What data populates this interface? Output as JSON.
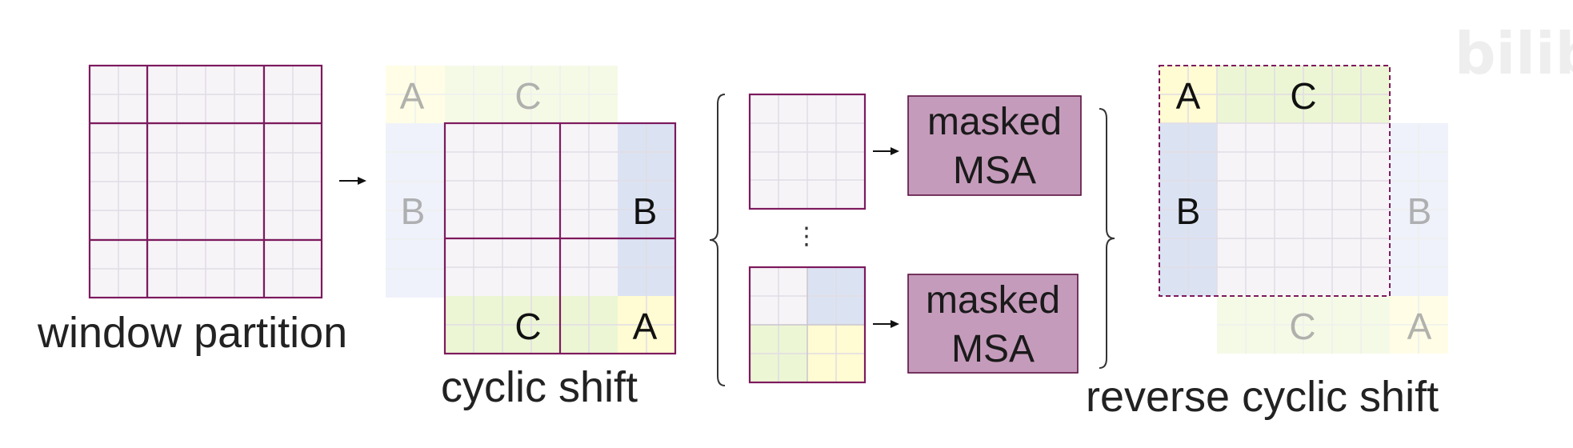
{
  "captions": {
    "window_partition": "window partition",
    "cyclic_shift": "cyclic shift",
    "reverse_cyclic_shift": "reverse cyclic shift"
  },
  "msa": {
    "line1": "masked",
    "line2": "MSA"
  },
  "region_labels": {
    "a": "A",
    "b": "B",
    "c": "C"
  },
  "ellipsis": "⋮",
  "watermark": "bilibili",
  "colors": {
    "cell_fill": "#f7f4f8",
    "grid_line": "#e1dce5",
    "window_border": "#7d1a5e",
    "region_a": "#fffbd2",
    "region_b": "#dbe3f3",
    "region_c": "#ecf6d4",
    "msa_fill": "#c59bbb",
    "label_dark": "#111111",
    "label_faded": "#999999"
  }
}
